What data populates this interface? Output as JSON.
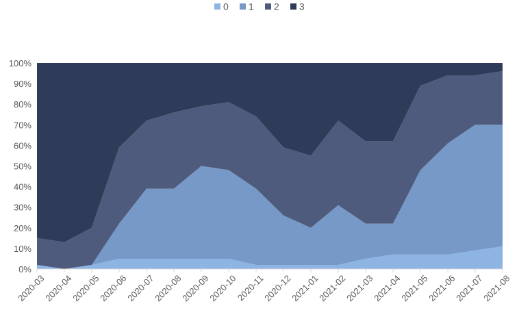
{
  "chart_data": {
    "type": "area",
    "stacking": "percent",
    "categories": [
      "2020-03",
      "2020-04",
      "2020-05",
      "2020-06",
      "2020-07",
      "2020-08",
      "2020-09",
      "2020-10",
      "2020-11",
      "2020-12",
      "2021-01",
      "2021-02",
      "2021-03",
      "2021-04",
      "2021-05",
      "2021-06",
      "2021-07",
      "2021-08"
    ],
    "series": [
      {
        "name": "0",
        "color": "#8db4e2",
        "values": [
          2,
          0,
          2,
          5,
          5,
          5,
          5,
          5,
          2,
          2,
          2,
          2,
          5,
          7,
          7,
          7,
          9,
          11
        ]
      },
      {
        "name": "1",
        "color": "#7699c7",
        "values": [
          0,
          0,
          0,
          17,
          34,
          34,
          45,
          43,
          37,
          24,
          18,
          29,
          17,
          15,
          41,
          54,
          61,
          59
        ]
      },
      {
        "name": "2",
        "color": "#4f5b7c",
        "values": [
          13,
          13,
          18,
          37,
          33,
          37,
          29,
          33,
          35,
          33,
          35,
          41,
          40,
          40,
          41,
          33,
          24,
          26
        ]
      },
      {
        "name": "3",
        "color": "#2f3c59",
        "values": [
          85,
          87,
          80,
          41,
          28,
          24,
          21,
          19,
          26,
          41,
          45,
          28,
          38,
          38,
          11,
          6,
          6,
          4
        ]
      }
    ],
    "ylim": [
      0,
      100
    ],
    "yticks": [
      "0%",
      "10%",
      "20%",
      "30%",
      "40%",
      "50%",
      "60%",
      "70%",
      "80%",
      "90%",
      "100%"
    ],
    "legend_position": "top-center",
    "grid": false
  }
}
